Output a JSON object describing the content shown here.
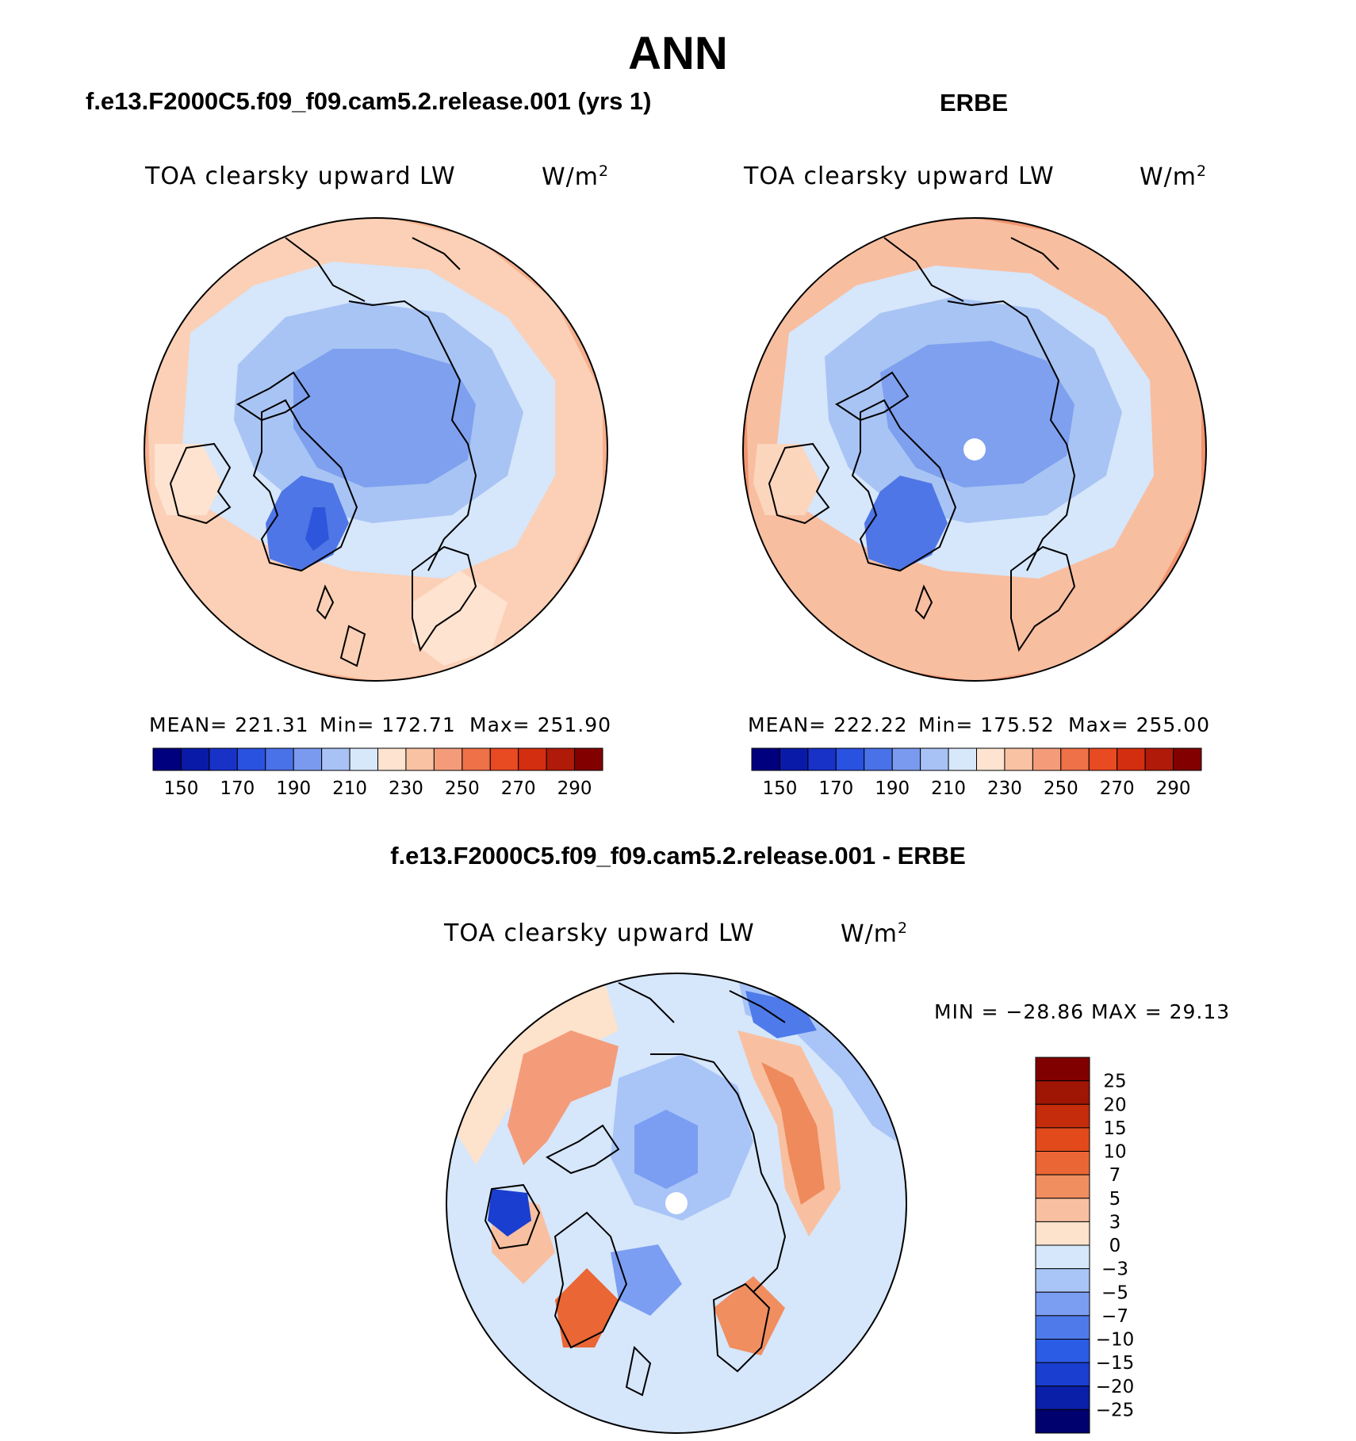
{
  "title": "ANN",
  "panels": [
    {
      "case": "f.e13.F2000C5.f09_f09.cam5.2.release.001 (yrs 1)",
      "variable": "TOA clearsky upward LW",
      "units_base": "W/m",
      "units_exp": "2",
      "stats": {
        "mean_label": "MEAN= 221.31",
        "min_label": "Min= 172.71",
        "max_label": "Max= 251.90"
      }
    },
    {
      "case": "ERBE",
      "variable": "TOA clearsky upward LW",
      "units_base": "W/m",
      "units_exp": "2",
      "stats": {
        "mean_label": "MEAN= 222.22",
        "min_label": "Min= 175.52",
        "max_label": "Max= 255.00"
      }
    }
  ],
  "diff_panel": {
    "case": "f.e13.F2000C5.f09_f09.cam5.2.release.001 - ERBE",
    "variable": "TOA clearsky upward LW",
    "units_base": "W/m",
    "units_exp": "2",
    "minmax_label": "MIN = −28.86 MAX =  29.13"
  },
  "colorbar_abs": {
    "colors": [
      "#00007f",
      "#0a1aa8",
      "#1832c8",
      "#2a52e0",
      "#4a72e8",
      "#7a9af0",
      "#a8c2f6",
      "#d8e8fb",
      "#fde3d0",
      "#f9c2a3",
      "#f49c7a",
      "#ee7148",
      "#e84a22",
      "#d42e10",
      "#b01a08",
      "#820000"
    ],
    "tick_labels": [
      "150",
      "170",
      "190",
      "210",
      "230",
      "250",
      "270",
      "290"
    ]
  },
  "colorbar_diff": {
    "colors": [
      "#00006e",
      "#0a1fa8",
      "#1a3ed0",
      "#2b5ce6",
      "#4f7bea",
      "#7b9ef2",
      "#a9c5f7",
      "#d6e7fb",
      "#fde2cc",
      "#f8c0a0",
      "#f08e60",
      "#ea6634",
      "#e24a1c",
      "#c42c0c",
      "#a01604",
      "#800000"
    ],
    "tick_labels": [
      "25",
      "20",
      "15",
      "10",
      "7",
      "5",
      "3",
      "0",
      "−3",
      "−5",
      "−7",
      "−10",
      "−15",
      "−20",
      "−25"
    ]
  },
  "map_colors": {
    "ocean_warm": "#f4a582",
    "mid_warm": "#fde0cc",
    "cold_light": "#d6e6fb",
    "cold_mid": "#a6c4f5",
    "cold_dark": "#7ea0ee",
    "greenland": "#3f6ae0"
  }
}
